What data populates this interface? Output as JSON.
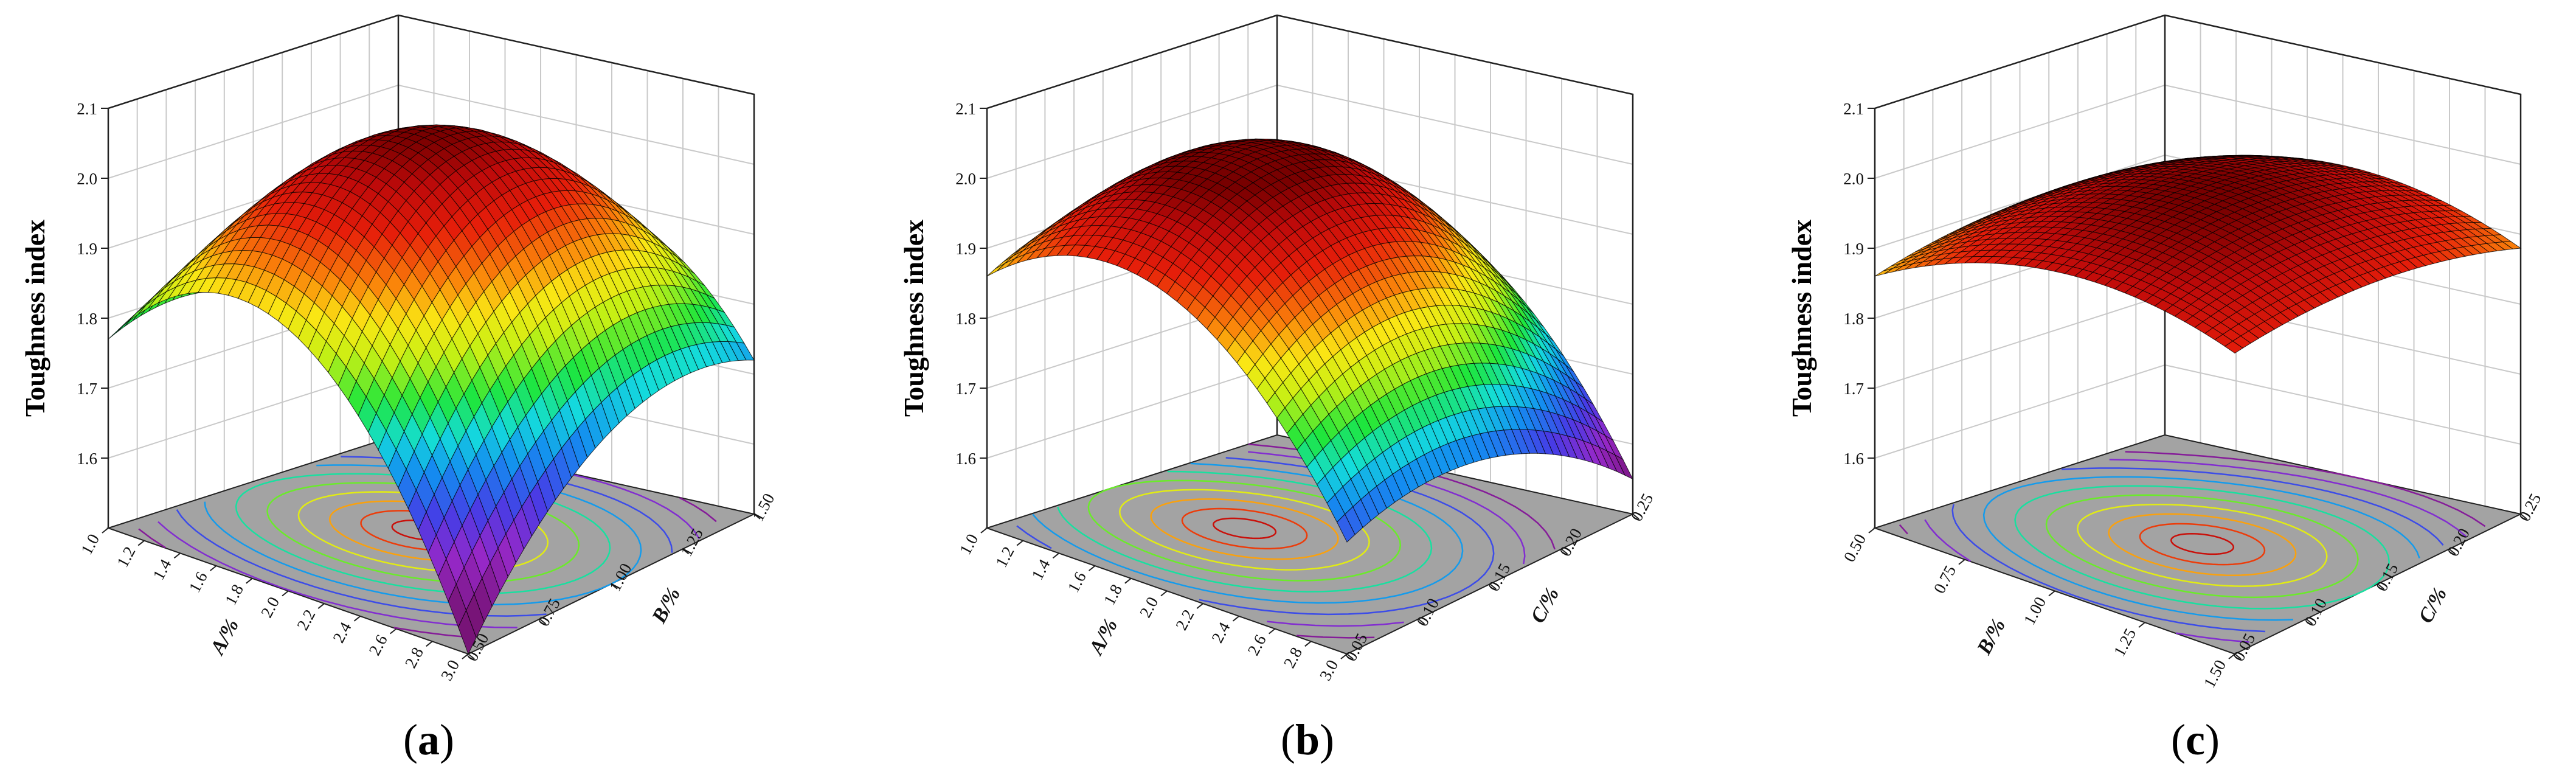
{
  "colors": {
    "floor": "#a3a3a3",
    "grid": "#c9c9c9",
    "axis": "#222222",
    "mesh": "#000000"
  },
  "chart_data": [
    {
      "type": "surface3d",
      "panel_label": "a",
      "title": "",
      "zlabel": "Toughness index",
      "xlabel": "A/%",
      "ylabel": "B/%",
      "zlim": [
        1.5,
        2.1
      ],
      "zticks": [
        "1.6",
        "1.7",
        "1.8",
        "1.9",
        "2.0",
        "2.1"
      ],
      "xrange": [
        1.0,
        3.0
      ],
      "xticks": [
        "1.0",
        "1.2",
        "1.4",
        "1.6",
        "1.8",
        "2.0",
        "2.2",
        "2.4",
        "2.6",
        "2.8",
        "3.0"
      ],
      "yrange": [
        0.5,
        1.5
      ],
      "yticks": [
        "0.50",
        "0.75",
        "1.00",
        "1.25",
        "1.50"
      ],
      "corner_values": {
        "A=1.0,B=0.50": 1.77,
        "A=1.0,B=1.50": 1.55,
        "A=3.0,B=0.50": 1.5,
        "A=3.0,B=1.50": 1.72
      },
      "max_value": 2.07,
      "contour_floor": true
    },
    {
      "type": "surface3d",
      "panel_label": "b",
      "title": "",
      "zlabel": "Toughness index",
      "xlabel": "A/%",
      "ylabel": "C/%",
      "zlim": [
        1.5,
        2.1
      ],
      "zticks": [
        "1.6",
        "1.7",
        "1.8",
        "1.9",
        "2.0",
        "2.1"
      ],
      "xrange": [
        1.0,
        3.0
      ],
      "xticks": [
        "1.0",
        "1.2",
        "1.4",
        "1.6",
        "1.8",
        "2.0",
        "2.2",
        "2.4",
        "2.6",
        "2.8",
        "3.0"
      ],
      "yrange": [
        0.05,
        0.25
      ],
      "yticks": [
        "0.05",
        "0.10",
        "0.15",
        "0.20",
        "0.25"
      ],
      "corner_values": {
        "A=1.0,C=0.05": 1.86,
        "A=1.0,C=0.25": 1.81,
        "A=3.0,C=0.05": 1.66,
        "A=3.0,C=0.25": 1.55
      },
      "max_value": 2.02,
      "contour_floor": true
    },
    {
      "type": "surface3d",
      "panel_label": "c",
      "title": "",
      "zlabel": "Toughness index",
      "xlabel": "B/%",
      "ylabel": "C/%",
      "zlim": [
        1.5,
        2.1
      ],
      "zticks": [
        "1.6",
        "1.7",
        "1.8",
        "1.9",
        "2.0",
        "2.1"
      ],
      "xrange": [
        0.5,
        1.5
      ],
      "xticks": [
        "0.50",
        "0.75",
        "1.00",
        "1.25",
        "1.50"
      ],
      "yrange": [
        0.05,
        0.25
      ],
      "yticks": [
        "0.05",
        "0.10",
        "0.15",
        "0.20",
        "0.25"
      ],
      "corner_values": {
        "B=0.50,C=0.05": 1.86,
        "B=0.50,C=0.25": 1.88,
        "B=1.50,C=0.05": 1.93,
        "B=1.50,C=0.25": 1.88
      },
      "max_value": 2.0,
      "contour_floor": true
    }
  ]
}
